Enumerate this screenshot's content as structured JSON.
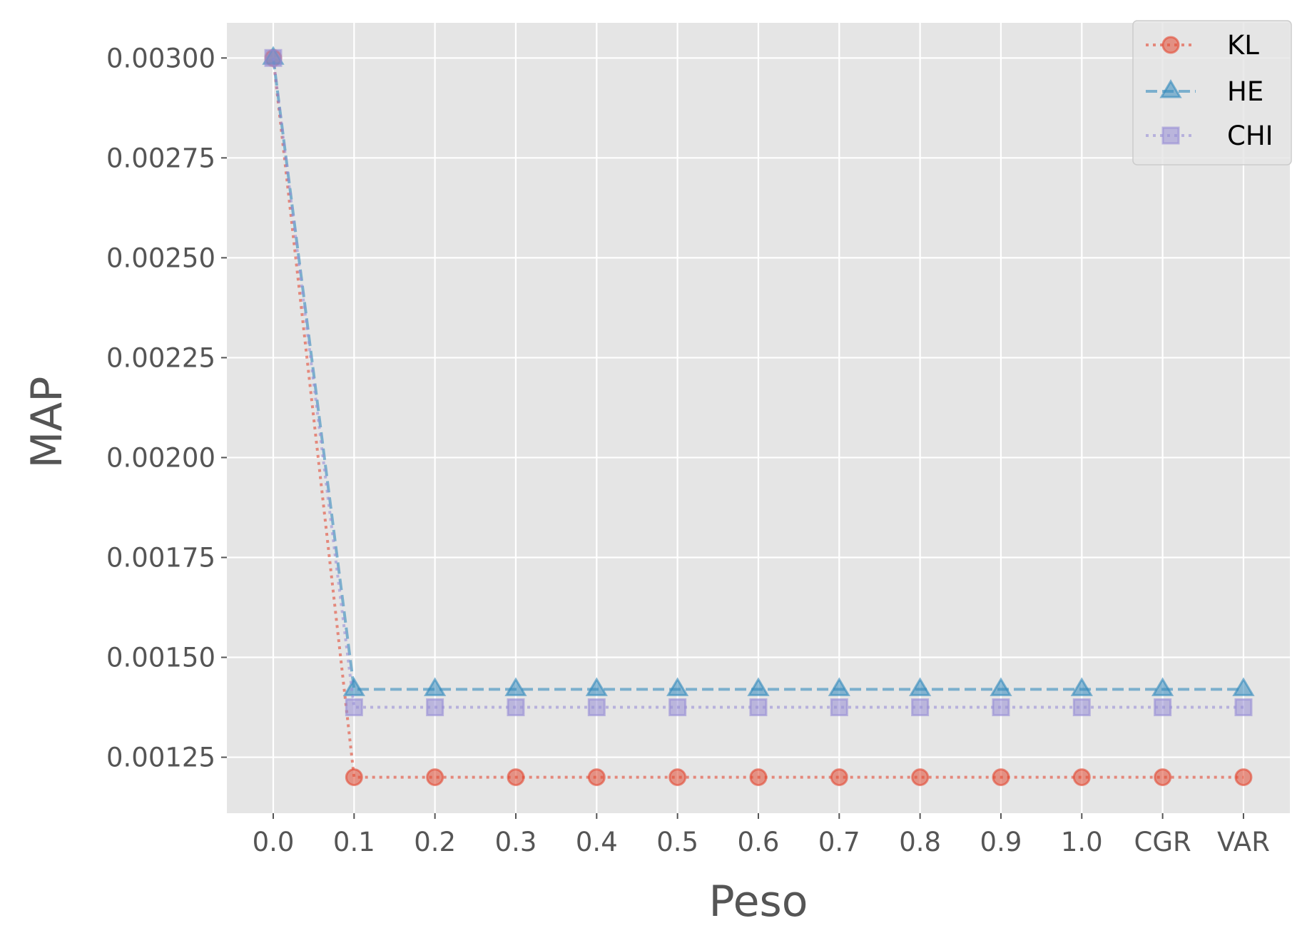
{
  "chart_data": {
    "type": "line",
    "title": "",
    "xlabel": "Peso",
    "ylabel": "MAP",
    "categories": [
      "0.0",
      "0.1",
      "0.2",
      "0.3",
      "0.4",
      "0.5",
      "0.6",
      "0.7",
      "0.8",
      "0.9",
      "1.0",
      "CGR",
      "VAR"
    ],
    "y_ticks": [
      "0.00125",
      "0.00150",
      "0.00175",
      "0.00200",
      "0.00225",
      "0.00250",
      "0.00275",
      "0.00300"
    ],
    "ylim": [
      0.00111,
      0.003088
    ],
    "grid": true,
    "legend_position": "top-right",
    "series": [
      {
        "name": "KL",
        "marker": "circle",
        "line_style": "dotted",
        "color": "#E24A33",
        "values": [
          0.003,
          0.0012,
          0.0012,
          0.0012,
          0.0012,
          0.0012,
          0.0012,
          0.0012,
          0.0012,
          0.0012,
          0.0012,
          0.0012,
          0.0012
        ]
      },
      {
        "name": "HE",
        "marker": "triangle",
        "line_style": "dashed",
        "color": "#348ABD",
        "values": [
          0.003,
          0.00142,
          0.00142,
          0.00142,
          0.00142,
          0.00142,
          0.00142,
          0.00142,
          0.00142,
          0.00142,
          0.00142,
          0.00142,
          0.00142
        ]
      },
      {
        "name": "CHI",
        "marker": "square",
        "line_style": "dotted",
        "color": "#988ED5",
        "values": [
          0.003,
          0.001375,
          0.001375,
          0.001375,
          0.001375,
          0.001375,
          0.001375,
          0.001375,
          0.001375,
          0.001375,
          0.001375,
          0.001375,
          0.001375
        ]
      }
    ]
  },
  "colors": {
    "plot_background": "#E5E5E5",
    "grid": "#FFFFFF",
    "tick_text": "#555555"
  }
}
